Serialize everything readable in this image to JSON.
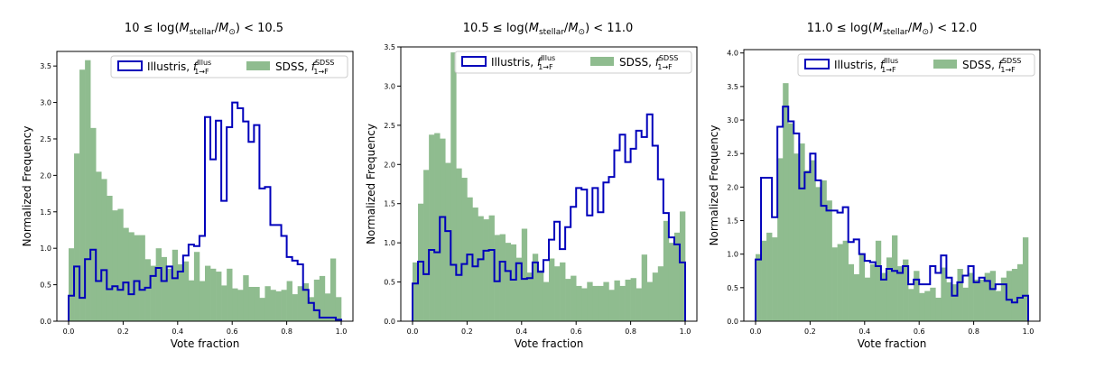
{
  "figure": {
    "titles": [
      {
        "pre": "10 ≤ log(",
        "m": "M",
        "sub": "stellar",
        "mid": "/",
        "m2": "M",
        "sub2": "⊙",
        "post": ") < 10.5"
      },
      {
        "pre": "10.5 ≤ log(",
        "m": "M",
        "sub": "stellar",
        "mid": "/",
        "m2": "M",
        "sub2": "⊙",
        "post": ") < 11.0"
      },
      {
        "pre": "11.0 ≤ log(",
        "m": "M",
        "sub": "stellar",
        "mid": "/",
        "m2": "M",
        "sub2": "⊙",
        "post": ") < 12.0"
      }
    ],
    "legend": {
      "illustris_prefix": "Illustris, ",
      "illustris_sym": "f",
      "illustris_sup": "Illus",
      "illustris_sub": "1→F",
      "sdss_prefix": "SDSS, ",
      "sdss_sym": "f",
      "sdss_sup": "SDSS",
      "sdss_sub": "1→F"
    },
    "colors": {
      "illustris": "#0000bb",
      "sdss": "#8fbc8f"
    }
  },
  "chart_data": [
    {
      "type": "histogram",
      "title": "10 ≤ log(M_stellar/M_⊙) < 10.5",
      "xlabel": "Vote fraction",
      "ylabel": "Normalized Frequency",
      "xlim": [
        0.0,
        1.0
      ],
      "ylim": [
        0.0,
        3.7
      ],
      "xticks": [
        "0.0",
        "0.2",
        "0.4",
        "0.6",
        "0.8",
        "1.0"
      ],
      "yticks": [
        "0.0",
        "0.5",
        "1.0",
        "1.5",
        "2.0",
        "2.5",
        "3.0",
        "3.5"
      ],
      "legend_position": "top-right",
      "bin_edges": {
        "start": 0.0,
        "stop": 1.0,
        "count": 50
      },
      "series": [
        {
          "name": "SDSS",
          "kind": "filled",
          "values": [
            1.0,
            2.3,
            3.45,
            3.58,
            2.65,
            2.05,
            1.95,
            1.72,
            1.52,
            1.54,
            1.28,
            1.22,
            1.18,
            1.18,
            0.85,
            0.76,
            1.0,
            0.88,
            0.72,
            0.98,
            0.78,
            0.82,
            0.56,
            0.95,
            0.55,
            0.76,
            0.72,
            0.68,
            0.49,
            0.72,
            0.45,
            0.43,
            0.63,
            0.47,
            0.47,
            0.32,
            0.48,
            0.43,
            0.41,
            0.43,
            0.55,
            0.37,
            0.48,
            0.52,
            0.33,
            0.57,
            0.62,
            0.38,
            0.86,
            0.33
          ]
        },
        {
          "name": "Illustris",
          "kind": "step",
          "values": [
            0.35,
            0.75,
            0.32,
            0.85,
            0.98,
            0.55,
            0.7,
            0.44,
            0.48,
            0.43,
            0.53,
            0.37,
            0.55,
            0.43,
            0.46,
            0.62,
            0.73,
            0.55,
            0.75,
            0.59,
            0.68,
            0.9,
            1.05,
            1.03,
            1.17,
            2.8,
            2.22,
            2.75,
            1.65,
            2.66,
            3.0,
            2.92,
            2.74,
            2.46,
            2.69,
            1.82,
            1.84,
            1.32,
            1.32,
            1.17,
            0.88,
            0.83,
            0.78,
            0.43,
            0.25,
            0.15,
            0.05,
            0.05,
            0.05,
            0.02
          ]
        }
      ]
    },
    {
      "type": "histogram",
      "title": "10.5 ≤ log(M_stellar/M_⊙) < 11.0",
      "xlabel": "Vote fraction",
      "ylabel": "Normalized Frequency",
      "xlim": [
        0.0,
        1.0
      ],
      "ylim": [
        0.0,
        3.5
      ],
      "xticks": [
        "0.0",
        "0.2",
        "0.4",
        "0.6",
        "0.8",
        "1.0"
      ],
      "yticks": [
        "0.0",
        "0.5",
        "1.0",
        "1.5",
        "2.0",
        "2.5",
        "3.0",
        "3.5"
      ],
      "legend_position": "top-right",
      "bin_edges": {
        "start": 0.0,
        "stop": 1.0,
        "count": 50
      },
      "series": [
        {
          "name": "SDSS",
          "kind": "filled",
          "values": [
            0.75,
            1.5,
            1.93,
            2.38,
            2.4,
            2.33,
            2.02,
            3.43,
            1.95,
            1.83,
            1.58,
            1.45,
            1.34,
            1.3,
            1.35,
            1.1,
            1.11,
            1.0,
            0.98,
            0.81,
            1.18,
            0.62,
            0.86,
            0.65,
            0.5,
            0.8,
            0.7,
            0.75,
            0.54,
            0.58,
            0.45,
            0.42,
            0.5,
            0.45,
            0.45,
            0.5,
            0.4,
            0.52,
            0.45,
            0.53,
            0.55,
            0.42,
            0.85,
            0.5,
            0.62,
            0.7,
            1.28,
            1.0,
            1.13,
            1.4
          ]
        },
        {
          "name": "Illustris",
          "kind": "step",
          "values": [
            0.48,
            0.76,
            0.6,
            0.91,
            0.88,
            1.33,
            1.15,
            0.72,
            0.59,
            0.73,
            0.85,
            0.7,
            0.79,
            0.9,
            0.91,
            0.51,
            0.76,
            0.64,
            0.53,
            0.74,
            0.54,
            0.55,
            0.75,
            0.63,
            0.78,
            1.04,
            1.27,
            0.92,
            1.2,
            1.46,
            1.7,
            1.68,
            1.35,
            1.7,
            1.39,
            1.77,
            1.84,
            2.18,
            2.38,
            2.03,
            2.2,
            2.43,
            2.35,
            2.64,
            2.24,
            1.81,
            1.38,
            1.07,
            0.98,
            0.75
          ]
        }
      ]
    },
    {
      "type": "histogram",
      "title": "11.0 ≤ log(M_stellar/M_⊙) < 12.0",
      "xlabel": "Vote fraction",
      "ylabel": "Normalized Frequency",
      "xlim": [
        0.0,
        1.0
      ],
      "ylim": [
        0.0,
        4.05
      ],
      "xticks": [
        "0.0",
        "0.2",
        "0.4",
        "0.6",
        "0.8",
        "1.0"
      ],
      "yticks": [
        "0.0",
        "0.5",
        "1.0",
        "1.5",
        "2.0",
        "2.5",
        "3.0",
        "3.5",
        "4.0"
      ],
      "legend_position": "top-right",
      "bin_edges": {
        "start": 0.0,
        "stop": 1.0,
        "count": 50
      },
      "series": [
        {
          "name": "SDSS",
          "kind": "filled",
          "values": [
            1.0,
            1.2,
            1.32,
            1.25,
            2.43,
            3.55,
            2.95,
            2.5,
            2.65,
            2.25,
            2.4,
            2.0,
            2.1,
            1.8,
            1.1,
            1.15,
            1.2,
            0.85,
            0.7,
            1.0,
            0.65,
            0.85,
            1.2,
            0.72,
            0.95,
            1.28,
            0.82,
            0.92,
            0.48,
            0.75,
            0.42,
            0.45,
            0.5,
            0.35,
            0.8,
            0.58,
            0.55,
            0.78,
            0.5,
            0.72,
            0.62,
            0.62,
            0.72,
            0.75,
            0.45,
            0.65,
            0.75,
            0.78,
            0.85,
            1.25
          ]
        },
        {
          "name": "Illustris",
          "kind": "step",
          "values": [
            0.92,
            2.14,
            2.14,
            1.55,
            2.9,
            3.2,
            2.98,
            2.8,
            1.98,
            2.22,
            2.5,
            2.1,
            1.72,
            1.65,
            1.65,
            1.62,
            1.7,
            1.18,
            1.22,
            1.0,
            0.9,
            0.88,
            0.82,
            0.62,
            0.78,
            0.75,
            0.72,
            0.82,
            0.55,
            0.62,
            0.55,
            0.55,
            0.82,
            0.72,
            0.98,
            0.65,
            0.38,
            0.58,
            0.68,
            0.82,
            0.58,
            0.65,
            0.6,
            0.48,
            0.55,
            0.55,
            0.32,
            0.28,
            0.35,
            0.38
          ]
        }
      ]
    }
  ]
}
